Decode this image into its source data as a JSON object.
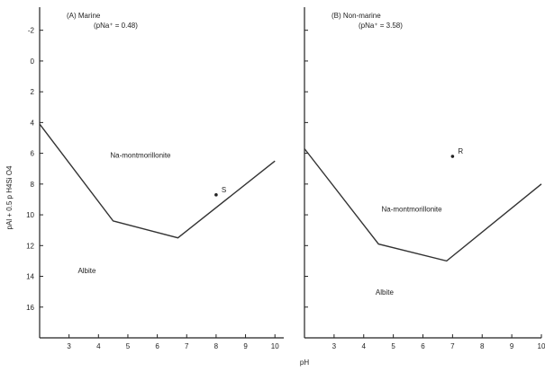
{
  "figure": {
    "ylabel": "pAl + 0.5 p H4Si O4",
    "xlabel": "pH"
  },
  "chart_data": [
    {
      "type": "line",
      "panel_label": "(A)  Marine",
      "subtitle": "(pNa⁺ = 0.48)",
      "xlim": [
        2,
        10.3
      ],
      "ylim": [
        -3.5,
        18
      ],
      "y_inverted": true,
      "xticks": [
        3,
        4,
        5,
        6,
        7,
        8,
        9,
        10
      ],
      "yticks": [
        -2,
        0,
        2,
        4,
        6,
        8,
        10,
        12,
        14,
        16
      ],
      "series": [
        {
          "values": [
            [
              2,
              4.1
            ],
            [
              4.5,
              10.4
            ],
            [
              6.7,
              11.5
            ],
            [
              10.0,
              6.5
            ]
          ]
        }
      ],
      "points": [
        {
          "label": "S",
          "x": 8.0,
          "y": 8.7
        }
      ],
      "region_labels": [
        {
          "text": "Na-montmorillonite",
          "x": 4.4,
          "y": 6.3
        },
        {
          "text": "Albite",
          "x": 3.3,
          "y": 13.8
        }
      ]
    },
    {
      "type": "line",
      "panel_label": "(B)  Non-marine",
      "subtitle": "(pNa⁺ = 3.58)",
      "xlim": [
        2,
        10
      ],
      "ylim": [
        -3.5,
        18
      ],
      "y_inverted": true,
      "xticks": [
        3,
        4,
        5,
        6,
        7,
        8,
        9,
        10
      ],
      "series": [
        {
          "values": [
            [
              2,
              5.7
            ],
            [
              4.5,
              11.9
            ],
            [
              6.8,
              13.0
            ],
            [
              10.0,
              8.0
            ]
          ]
        }
      ],
      "points": [
        {
          "label": "R",
          "x": 7.0,
          "y": 6.2
        }
      ],
      "region_labels": [
        {
          "text": "Na-montmorillonite",
          "x": 4.6,
          "y": 9.8
        },
        {
          "text": "Albite",
          "x": 4.4,
          "y": 15.2
        }
      ]
    }
  ]
}
